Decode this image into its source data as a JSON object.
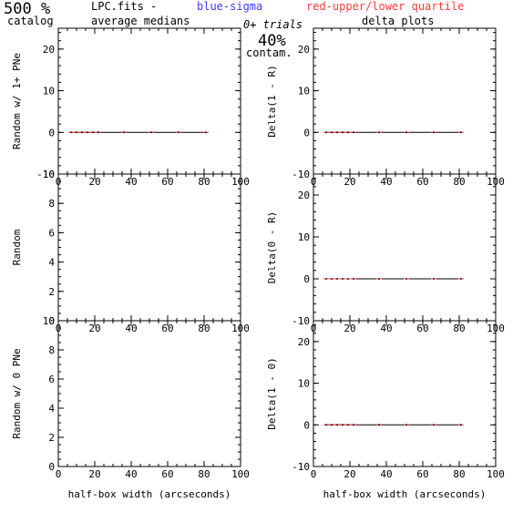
{
  "header": {
    "pct_value": "500 %",
    "catalog_label": "catalog",
    "fits_label": "LPC.fits  -",
    "medians_label": "average medians",
    "blue_label": "blue-sigma",
    "red_label": "red-upper/lower quartile",
    "trials_label": "0+ trials",
    "contam_value": "40%",
    "contam_label": "contam.",
    "delta_label": "delta plots"
  },
  "colors": {
    "frame": "#000000",
    "blue": "#3a3aff",
    "red": "#ff3a3a",
    "line": "#000000"
  },
  "chart_data": [
    {
      "type": "line",
      "ylabel": "Random w/ 1+ PNe",
      "xlim": [
        0,
        100
      ],
      "ylim": [
        -10,
        25
      ],
      "xticks": [
        0,
        20,
        40,
        60,
        80,
        100
      ],
      "yticks": [
        -10,
        0,
        10,
        20
      ],
      "x": [
        7,
        10,
        13,
        16,
        19,
        22,
        36,
        51,
        66,
        81
      ],
      "series": [
        {
          "values": [
            0,
            0,
            0,
            0,
            0,
            0,
            0,
            0,
            0,
            0
          ]
        }
      ]
    },
    {
      "type": "line",
      "ylabel": "Delta(1 - R)",
      "xlim": [
        0,
        100
      ],
      "ylim": [
        -10,
        25
      ],
      "xticks": [
        0,
        20,
        40,
        60,
        80,
        100
      ],
      "yticks": [
        -10,
        0,
        10,
        20
      ],
      "x": [
        7,
        10,
        13,
        16,
        19,
        22,
        36,
        51,
        66,
        81
      ],
      "series": [
        {
          "values": [
            0,
            0,
            0,
            0,
            0,
            0,
            0,
            0,
            0,
            0
          ]
        }
      ]
    },
    {
      "type": "line",
      "ylabel": "Random",
      "xlim": [
        0,
        100
      ],
      "ylim": [
        0,
        10
      ],
      "xticks": [
        0,
        20,
        40,
        60,
        80,
        100
      ],
      "yticks": [
        0,
        2,
        4,
        6,
        8,
        10
      ],
      "x": [],
      "series": []
    },
    {
      "type": "line",
      "ylabel": "Delta(0 - R)",
      "xlim": [
        0,
        100
      ],
      "ylim": [
        -10,
        25
      ],
      "xticks": [
        0,
        20,
        40,
        60,
        80,
        100
      ],
      "yticks": [
        -10,
        0,
        10,
        20
      ],
      "x": [
        7,
        10,
        13,
        16,
        19,
        22,
        36,
        51,
        66,
        81
      ],
      "series": [
        {
          "values": [
            0,
            0,
            0,
            0,
            0,
            0,
            0,
            0,
            0,
            0
          ]
        }
      ]
    },
    {
      "type": "line",
      "ylabel": "Random w/ 0 PNe",
      "xlabel": "half-box width (arcseconds)",
      "xlim": [
        0,
        100
      ],
      "ylim": [
        0,
        10
      ],
      "xticks": [
        0,
        20,
        40,
        60,
        80,
        100
      ],
      "yticks": [
        0,
        2,
        4,
        6,
        8,
        10
      ],
      "x": [],
      "series": []
    },
    {
      "type": "line",
      "ylabel": "Delta(1 - 0)",
      "xlabel": "half-box width (arcseconds)",
      "xlim": [
        0,
        100
      ],
      "ylim": [
        -10,
        25
      ],
      "xticks": [
        0,
        20,
        40,
        60,
        80,
        100
      ],
      "yticks": [
        -10,
        0,
        10,
        20
      ],
      "x": [
        7,
        10,
        13,
        16,
        19,
        22,
        36,
        51,
        66,
        81
      ],
      "series": [
        {
          "values": [
            0,
            0,
            0,
            0,
            0,
            0,
            0,
            0,
            0,
            0
          ]
        }
      ]
    }
  ]
}
